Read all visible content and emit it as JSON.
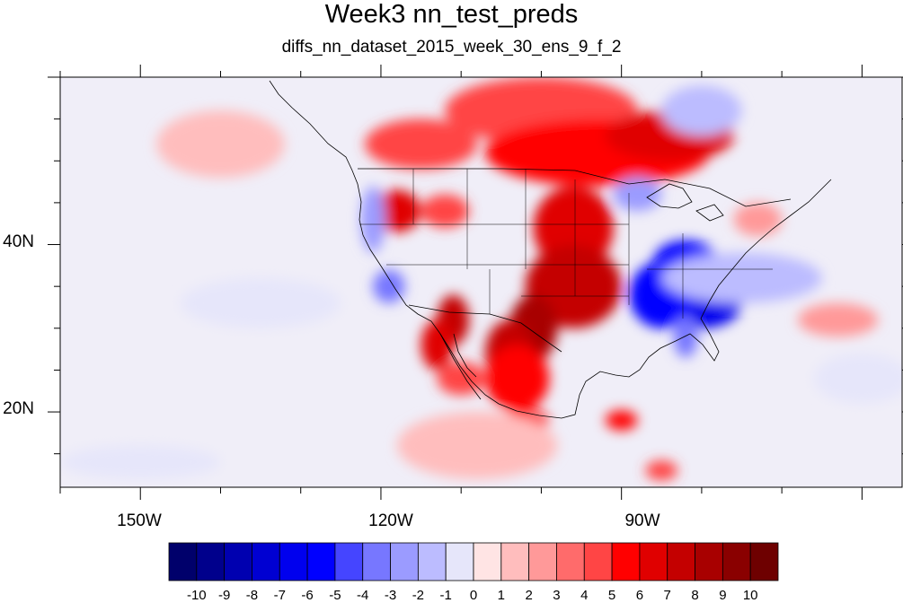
{
  "title": "Week3 nn_test_preds",
  "subtitle": "diffs_nn_dataset_2015_week_30_ens_9_f_2",
  "map": {
    "lon_range": [
      -160,
      -55
    ],
    "lat_range": [
      11,
      60
    ],
    "x_tick_labels": [
      {
        "lon": -150,
        "label": "150W"
      },
      {
        "lon": -120,
        "label": "120W"
      },
      {
        "lon": -90,
        "label": "90W"
      }
    ],
    "y_tick_labels": [
      {
        "lat": 40,
        "label": "40N"
      },
      {
        "lat": 20,
        "label": "20N"
      }
    ]
  },
  "colorbar": {
    "levels": [
      "-10",
      "-9",
      "-8",
      "-7",
      "-6",
      "-5",
      "-4",
      "-3",
      "-2",
      "-1",
      "0",
      "1",
      "2",
      "3",
      "4",
      "5",
      "6",
      "7",
      "8",
      "9",
      "10"
    ],
    "colors": [
      "#00006b",
      "#00008c",
      "#0000b0",
      "#0000d2",
      "#0000ee",
      "#0000ff",
      "#4545ff",
      "#7777ff",
      "#9b9bff",
      "#bcbcff",
      "#e6e6fa",
      "#ffe4e4",
      "#ffbdbd",
      "#ff9999",
      "#ff6b6b",
      "#ff4545",
      "#ff0000",
      "#e00000",
      "#c40000",
      "#a80000",
      "#8a0000",
      "#6e0000"
    ]
  },
  "field_blobs": [
    {
      "lon": -100,
      "lat": 56,
      "rx": 12,
      "ry": 4,
      "v": 4
    },
    {
      "lon": -93,
      "lat": 51,
      "rx": 14,
      "ry": 4,
      "v": 5
    },
    {
      "lon": -84,
      "lat": 53,
      "rx": 8,
      "ry": 3,
      "v": 6
    },
    {
      "lon": -115,
      "lat": 52,
      "rx": 7,
      "ry": 3,
      "v": 4
    },
    {
      "lon": -118,
      "lat": 44,
      "rx": 3,
      "ry": 2.5,
      "v": 6
    },
    {
      "lon": -112,
      "lat": 44,
      "rx": 3,
      "ry": 2,
      "v": 4
    },
    {
      "lon": -96,
      "lat": 42,
      "rx": 5,
      "ry": 5,
      "v": 6
    },
    {
      "lon": -96,
      "lat": 35,
      "rx": 6,
      "ry": 5,
      "v": 7
    },
    {
      "lon": -101,
      "lat": 30,
      "rx": 3,
      "ry": 4,
      "v": 8
    },
    {
      "lon": -104,
      "lat": 27,
      "rx": 3,
      "ry": 4,
      "v": 7
    },
    {
      "lon": -111,
      "lat": 31,
      "rx": 2,
      "ry": 3,
      "v": 7
    },
    {
      "lon": -113,
      "lat": 28,
      "rx": 2,
      "ry": 3,
      "v": 6
    },
    {
      "lon": -103,
      "lat": 24,
      "rx": 4,
      "ry": 4,
      "v": 5
    },
    {
      "lon": -110,
      "lat": 24,
      "rx": 3,
      "ry": 2,
      "v": 4
    },
    {
      "lon": -102,
      "lat": 19,
      "rx": 3,
      "ry": 1.2,
      "v": 5
    },
    {
      "lon": -90,
      "lat": 19,
      "rx": 2,
      "ry": 1.2,
      "v": 5
    },
    {
      "lon": -85,
      "lat": 13,
      "rx": 2,
      "ry": 1.2,
      "v": 4
    },
    {
      "lon": -80,
      "lat": 33,
      "rx": 5,
      "ry": 3,
      "v": -7
    },
    {
      "lon": -85,
      "lat": 34,
      "rx": 4,
      "ry": 4,
      "v": -6
    },
    {
      "lon": -82,
      "lat": 38,
      "rx": 4,
      "ry": 2.5,
      "v": -6
    },
    {
      "lon": -82,
      "lat": 29,
      "rx": 1.5,
      "ry": 2.5,
      "v": -4
    },
    {
      "lon": -121,
      "lat": 43,
      "rx": 1.5,
      "ry": 4,
      "v": -3
    },
    {
      "lon": -119,
      "lat": 35,
      "rx": 2,
      "ry": 2,
      "v": -4
    },
    {
      "lon": -75,
      "lat": 36,
      "rx": 10,
      "ry": 3,
      "v": -2
    },
    {
      "lon": -88,
      "lat": 46,
      "rx": 3,
      "ry": 2,
      "v": -3
    },
    {
      "lon": -80,
      "lat": 56,
      "rx": 5,
      "ry": 3,
      "v": -2
    },
    {
      "lon": -135,
      "lat": 33,
      "rx": 10,
      "ry": 3,
      "v": -1
    },
    {
      "lon": -60,
      "lat": 24,
      "rx": 6,
      "ry": 3,
      "v": -1
    },
    {
      "lon": -140,
      "lat": 52,
      "rx": 8,
      "ry": 4,
      "v": 1
    },
    {
      "lon": -63,
      "lat": 31,
      "rx": 5,
      "ry": 2,
      "v": 2
    },
    {
      "lon": -73,
      "lat": 43,
      "rx": 3,
      "ry": 2,
      "v": 2
    },
    {
      "lon": -108,
      "lat": 16,
      "rx": 10,
      "ry": 4,
      "v": 1
    },
    {
      "lon": -150,
      "lat": 14,
      "rx": 10,
      "ry": 2,
      "v": -1
    }
  ]
}
